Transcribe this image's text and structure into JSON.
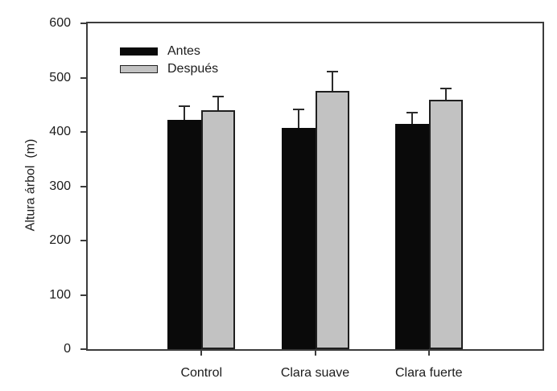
{
  "chart_data": {
    "type": "bar",
    "title": "",
    "ylabel": "Altura árbol  (m)",
    "xlabel": "",
    "ylim": [
      0,
      600
    ],
    "yticks": [
      0,
      100,
      200,
      300,
      400,
      500,
      600
    ],
    "categories": [
      "Control",
      "Clara suave",
      "Clara fuerte"
    ],
    "series": [
      {
        "name": "Antes",
        "color": "#0a0a0a",
        "border_color": "#0a0a0a",
        "values": [
          422,
          407,
          415
        ],
        "errors": [
          26,
          34,
          21
        ]
      },
      {
        "name": "Después",
        "color": "#c2c2c2",
        "border_color": "#1f1f1f",
        "values": [
          440,
          475,
          460
        ],
        "errors": [
          25,
          36,
          20
        ]
      }
    ],
    "legend": {
      "position": "top-left-inside",
      "entries": [
        "Antes",
        "Después"
      ]
    },
    "grid": false,
    "axis_color": "#3c3c3c",
    "error_bar_color": "#2b2b2b",
    "background": "#ffffff"
  }
}
